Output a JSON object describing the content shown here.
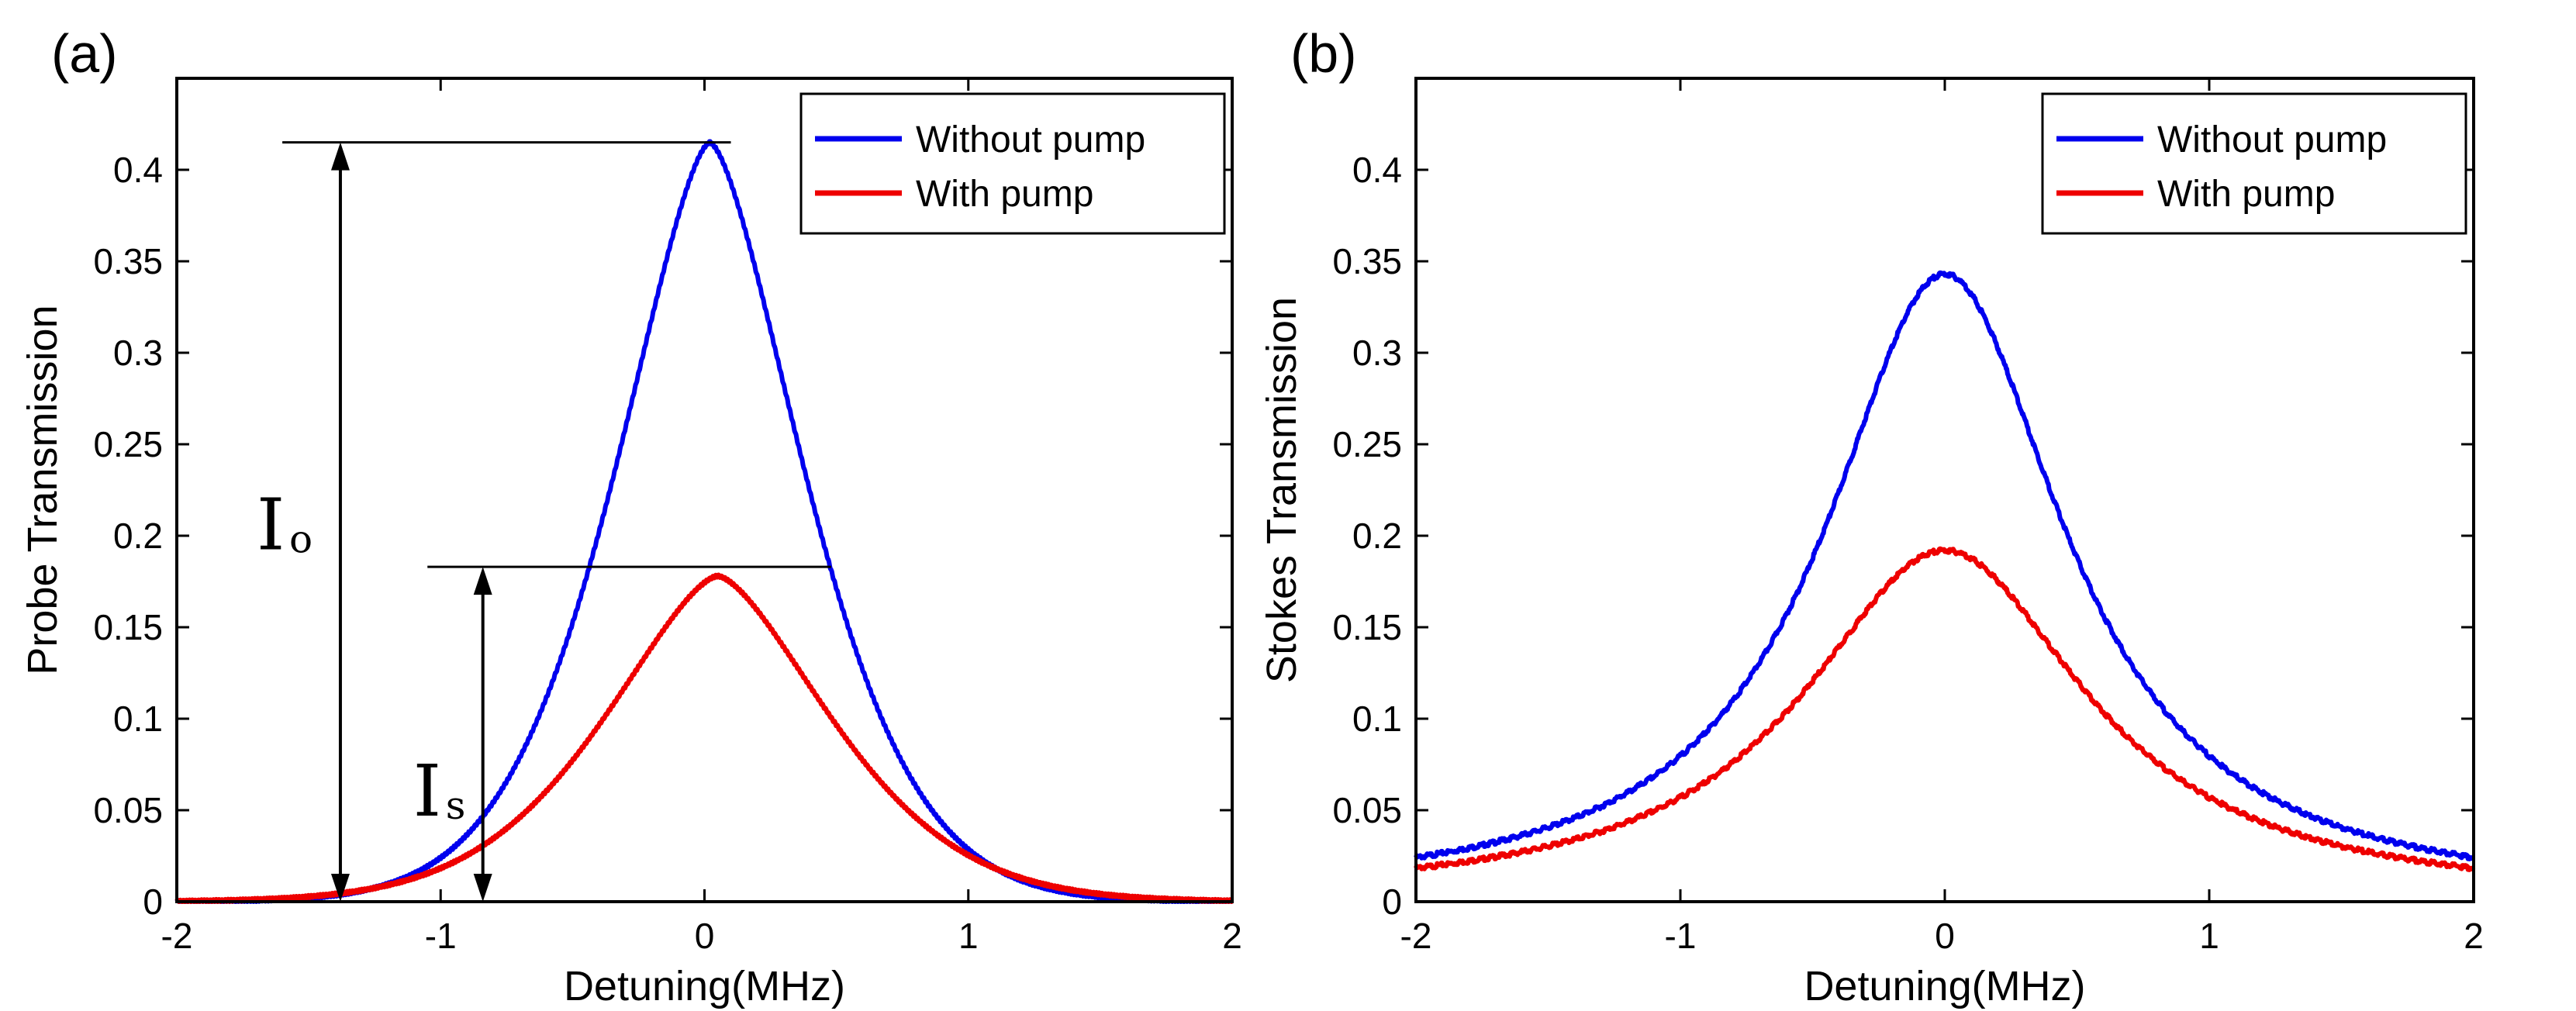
{
  "chart_data": [
    {
      "type": "line",
      "panel_label": "(a)",
      "xlabel": "Detuning(MHz)",
      "ylabel": "Probe Transmission",
      "xlim": [
        -2,
        2
      ],
      "ylim": [
        0,
        0.45
      ],
      "xticks": [
        -2,
        -1,
        0,
        1,
        2
      ],
      "xtick_labels": [
        "-2",
        "-1",
        "0",
        "1",
        "2"
      ],
      "yticks": [
        0,
        0.05,
        0.1,
        0.15,
        0.2,
        0.25,
        0.3,
        0.35,
        0.4
      ],
      "ytick_labels": [
        "0",
        "0.05",
        "0.1",
        "0.15",
        "0.2",
        "0.25",
        "0.3",
        "0.35",
        "0.4"
      ],
      "grid": false,
      "legend_position": "top-right",
      "series": [
        {
          "name": "Without pump",
          "color": "#0000ee",
          "peak": 0.415,
          "center": 0.02,
          "hwhm": 0.42,
          "baseline": 0.0
        },
        {
          "name": "With pump",
          "color": "#ee0000",
          "peak": 0.178,
          "center": 0.05,
          "hwhm": 0.5,
          "baseline": 0.0
        }
      ],
      "annotations": [
        {
          "label": "I",
          "sub": "o",
          "x": -1.38,
          "y_from": 0,
          "y_to": 0.415,
          "line_x": [
            -1.6,
            0.1
          ]
        },
        {
          "label": "I",
          "sub": "s",
          "x": -0.84,
          "y_from": 0,
          "y_to": 0.183,
          "line_x": [
            -1.05,
            0.48
          ]
        }
      ]
    },
    {
      "type": "line",
      "panel_label": "(b)",
      "xlabel": "Detuning(MHz)",
      "ylabel": "Stokes Transmission",
      "xlim": [
        -2,
        2
      ],
      "ylim": [
        0,
        0.45
      ],
      "xticks": [
        -2,
        -1,
        0,
        1,
        2
      ],
      "xtick_labels": [
        "-2",
        "-1",
        "0",
        "1",
        "2"
      ],
      "yticks": [
        0,
        0.05,
        0.1,
        0.15,
        0.2,
        0.25,
        0.3,
        0.35,
        0.4
      ],
      "ytick_labels": [
        "0",
        "0.05",
        "0.1",
        "0.15",
        "0.2",
        "0.25",
        "0.3",
        "0.35",
        "0.4"
      ],
      "grid": false,
      "legend_position": "top-right",
      "series": [
        {
          "name": "Without pump",
          "color": "#0000ee",
          "peak": 0.343,
          "center": 0.0,
          "hwhm": 0.55,
          "baseline": 0.0
        },
        {
          "name": "With pump",
          "color": "#ee0000",
          "peak": 0.192,
          "center": 0.0,
          "hwhm": 0.65,
          "baseline": 0.0
        }
      ]
    }
  ]
}
